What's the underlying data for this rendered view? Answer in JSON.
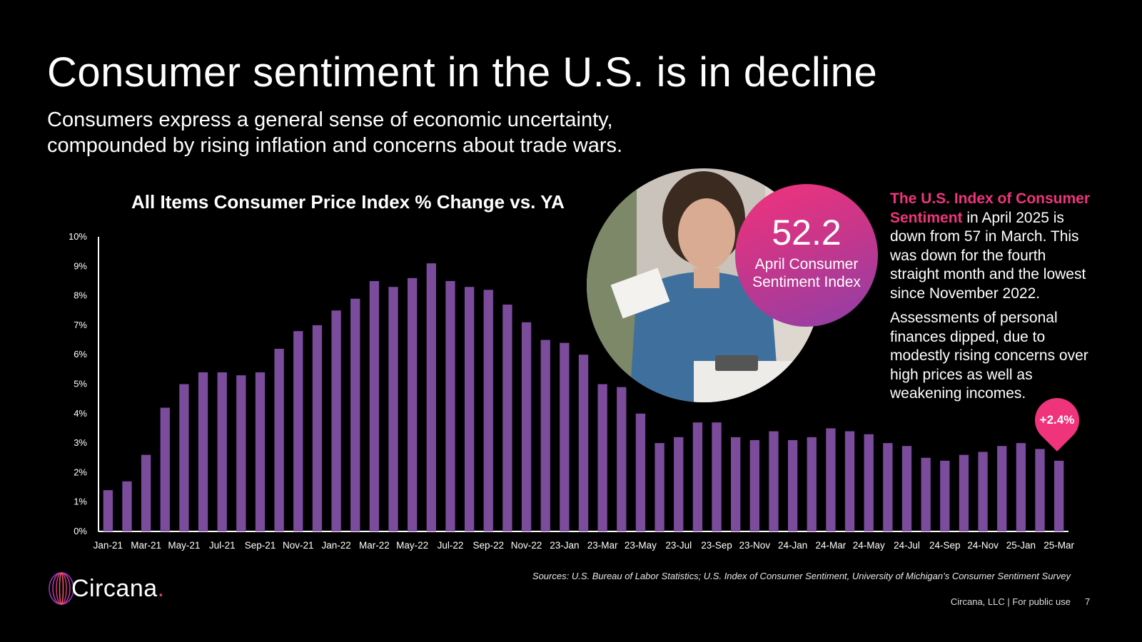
{
  "slide": {
    "title": "Consumer sentiment in the U.S. is in decline",
    "subtitle": "Consumers express a general sense of economic uncertainty, compounded by rising inflation and concerns about trade wars.",
    "chart_title": "All Items Consumer Price Index % Change vs. YA"
  },
  "badge": {
    "value": "52.2",
    "label_line1": "April Consumer",
    "label_line2": "Sentiment Index"
  },
  "sidebar": {
    "highlight": "The U.S. Index of Consumer Sentiment",
    "paragraph1_rest": " in April 2025 is down from 57 in March. This was down for the fourth straight month and the lowest since November 2022.",
    "paragraph2": "Assessments of personal finances dipped, due to modestly rising concerns over high prices as well as weakening incomes."
  },
  "callout": {
    "label": "+2.4%"
  },
  "sources": "Sources: U.S. Bureau of Labor Statistics; U.S. Index of Consumer Sentiment, University of Michigan’s Consumer Sentiment Survey",
  "brand": {
    "name": "Circana",
    "dot": "."
  },
  "footer": {
    "text": "Circana, LLC |  For public use",
    "page": "7"
  },
  "colors": {
    "bar": "#7b4b9c",
    "accent": "#f0347c",
    "background": "#000000"
  },
  "chart_data": {
    "type": "bar",
    "title": "All Items Consumer Price Index % Change vs. YA",
    "xlabel": "",
    "ylabel": "",
    "ylim": [
      0,
      10
    ],
    "yticks": [
      "0%",
      "1%",
      "2%",
      "3%",
      "4%",
      "5%",
      "6%",
      "7%",
      "8%",
      "9%",
      "10%"
    ],
    "categories": [
      "Jan-21",
      "Feb-21",
      "Mar-21",
      "Apr-21",
      "May-21",
      "Jun-21",
      "Jul-21",
      "Aug-21",
      "Sep-21",
      "Oct-21",
      "Nov-21",
      "Dec-21",
      "Jan-22",
      "Feb-22",
      "Mar-22",
      "Apr-22",
      "May-22",
      "Jun-22",
      "Jul-22",
      "Aug-22",
      "Sep-22",
      "Oct-22",
      "Nov-22",
      "Dec-22",
      "23-Jan",
      "23-Feb",
      "23-Mar",
      "23-Apr",
      "23-May",
      "23-Jun",
      "23-Jul",
      "23-Aug",
      "23-Sep",
      "23-Oct",
      "23-Nov",
      "23-Dec",
      "24-Jan",
      "24-Feb",
      "24-Mar",
      "24-Apr",
      "24-May",
      "24-Jun",
      "24-Jul",
      "24-Aug",
      "24-Sep",
      "24-Oct",
      "24-Nov",
      "24-Dec",
      "25-Jan",
      "25-Feb",
      "25-Mar"
    ],
    "xtick_labels": [
      "Jan-21",
      "",
      "Mar-21",
      "",
      "May-21",
      "",
      "Jul-21",
      "",
      "Sep-21",
      "",
      "Nov-21",
      "",
      "Jan-22",
      "",
      "Mar-22",
      "",
      "May-22",
      "",
      "Jul-22",
      "",
      "Sep-22",
      "",
      "Nov-22",
      "",
      "23-Jan",
      "",
      "23-Mar",
      "",
      "23-May",
      "",
      "23-Jul",
      "",
      "23-Sep",
      "",
      "23-Nov",
      "",
      "24-Jan",
      "",
      "24-Mar",
      "",
      "24-May",
      "",
      "24-Jul",
      "",
      "24-Sep",
      "",
      "24-Nov",
      "",
      "25-Jan",
      "",
      "25-Mar"
    ],
    "values": [
      1.4,
      1.7,
      2.6,
      4.2,
      5.0,
      5.4,
      5.4,
      5.3,
      5.4,
      6.2,
      6.8,
      7.0,
      7.5,
      7.9,
      8.5,
      8.3,
      8.6,
      9.1,
      8.5,
      8.3,
      8.2,
      7.7,
      7.1,
      6.5,
      6.4,
      6.0,
      5.0,
      4.9,
      4.0,
      3.0,
      3.2,
      3.7,
      3.7,
      3.2,
      3.1,
      3.4,
      3.1,
      3.2,
      3.5,
      3.4,
      3.3,
      3.0,
      2.9,
      2.5,
      2.4,
      2.6,
      2.7,
      2.9,
      3.0,
      2.8,
      2.4
    ]
  }
}
